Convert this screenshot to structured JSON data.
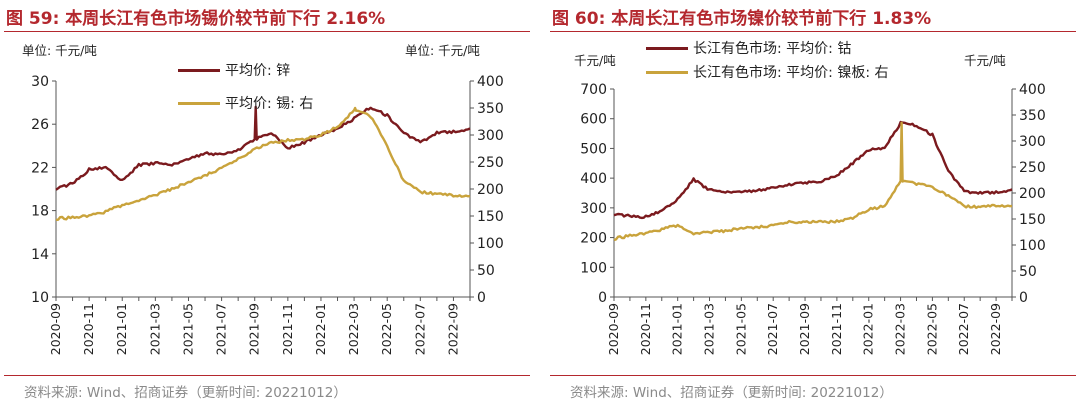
{
  "left_panel": {
    "title": "图 59:  本周长江有色市场锡价较节前下行 2.16%",
    "unit_left": "单位:  千元/吨",
    "unit_right": "单位:  千元/吨",
    "source": "资料来源:  Wind、招商证券（更新时间: 20221012）",
    "legend": [
      {
        "label": "平均价: 锌",
        "color": "#7b1a1e"
      },
      {
        "label": "平均价: 锡: 右",
        "color": "#c9a33c"
      }
    ]
  },
  "right_panel": {
    "title": "图 60:  本周长江有色市场镍价较节前下行 1.83%",
    "unit_left": "千元/吨",
    "unit_right": "千元/吨",
    "source": "资料来源:  Wind、招商证券（更新时间: 20221012）",
    "legend": [
      {
        "label": "长江有色市场: 平均价: 钴",
        "color": "#7b1a1e"
      },
      {
        "label": "长江有色市场: 平均价: 镍板:  右",
        "color": "#c9a33c"
      }
    ]
  },
  "chart_data": [
    {
      "type": "line",
      "title": "本周长江有色市场锡价较节前下行 2.16%",
      "x": [
        "2020-09",
        "2020-10",
        "2020-11",
        "2020-12",
        "2021-01",
        "2021-02",
        "2021-03",
        "2021-04",
        "2021-05",
        "2021-06",
        "2021-07",
        "2021-08",
        "2021-09",
        "2021-10",
        "2021-11",
        "2021-12",
        "2022-01",
        "2022-02",
        "2022-03",
        "2022-04",
        "2022-05",
        "2022-06",
        "2022-07",
        "2022-08",
        "2022-09",
        "2022-10"
      ],
      "x_tick_labels": [
        "2020-09",
        "2020-11",
        "2021-01",
        "2021-03",
        "2021-05",
        "2021-07",
        "2021-09",
        "2021-11",
        "2022-01",
        "2022-03",
        "2022-05",
        "2022-07",
        "2022-09"
      ],
      "series": [
        {
          "name": "平均价: 锌",
          "axis": "left",
          "color": "#7b1a1e",
          "values": [
            20.0,
            20.5,
            21.8,
            22.0,
            20.8,
            22.2,
            22.4,
            22.2,
            22.8,
            23.3,
            23.2,
            23.6,
            24.6,
            25.2,
            23.8,
            24.3,
            25.0,
            25.6,
            26.5,
            27.6,
            26.8,
            25.2,
            24.3,
            25.2,
            25.3,
            25.6
          ],
          "spikes": [
            {
              "x": "2021-09",
              "value": 27.6
            }
          ]
        },
        {
          "name": "平均价: 锡: 右",
          "axis": "right",
          "color": "#c9a33c",
          "values": [
            145,
            147,
            150,
            158,
            170,
            180,
            188,
            200,
            212,
            225,
            238,
            255,
            275,
            285,
            290,
            292,
            300,
            315,
            345,
            335,
            280,
            215,
            195,
            190,
            188,
            187
          ],
          "spikes": [
            {
              "x": "2022-03",
              "value": 350
            }
          ]
        }
      ],
      "ylim_left": [
        10,
        30
      ],
      "yticks_left": [
        10,
        14,
        18,
        22,
        26,
        30
      ],
      "ylim_right": [
        0,
        400
      ],
      "yticks_right": [
        0,
        50,
        100,
        150,
        200,
        250,
        300,
        350,
        400
      ],
      "ylabel_left": "单位:  千元/吨",
      "ylabel_right": "单位:  千元/吨",
      "xlabel": ""
    },
    {
      "type": "line",
      "title": "本周长江有色市场镍价较节前下行 1.83%",
      "x": [
        "2020-09",
        "2020-10",
        "2020-11",
        "2020-12",
        "2021-01",
        "2021-02",
        "2021-03",
        "2021-04",
        "2021-05",
        "2021-06",
        "2021-07",
        "2021-08",
        "2021-09",
        "2021-10",
        "2021-11",
        "2021-12",
        "2022-01",
        "2022-02",
        "2022-03",
        "2022-04",
        "2022-05",
        "2022-06",
        "2022-07",
        "2022-08",
        "2022-09",
        "2022-10"
      ],
      "x_tick_labels": [
        "2020-09",
        "2020-11",
        "2021-01",
        "2021-03",
        "2021-05",
        "2021-07",
        "2021-09",
        "2021-11",
        "2022-01",
        "2022-03",
        "2022-05",
        "2022-07",
        "2022-09"
      ],
      "series": [
        {
          "name": "长江有色市场: 平均价: 钴",
          "axis": "left",
          "color": "#7b1a1e",
          "values": [
            278,
            272,
            270,
            290,
            330,
            395,
            360,
            352,
            355,
            358,
            368,
            378,
            385,
            388,
            410,
            450,
            495,
            502,
            585,
            578,
            545,
            425,
            355,
            350,
            352,
            362
          ],
          "spikes": []
        },
        {
          "name": "长江有色市场: 平均价: 镍板:  右",
          "axis": "right",
          "color": "#c9a33c",
          "values": [
            112,
            118,
            122,
            130,
            138,
            123,
            124,
            127,
            132,
            134,
            137,
            144,
            145,
            144,
            145,
            152,
            168,
            175,
            222,
            218,
            212,
            195,
            175,
            172,
            176,
            175
          ],
          "spikes": [
            {
              "x": "2022-03",
              "value": 335
            }
          ]
        }
      ],
      "ylim_left": [
        0,
        700
      ],
      "yticks_left": [
        0,
        100,
        200,
        300,
        400,
        500,
        600,
        700
      ],
      "ylim_right": [
        0,
        400
      ],
      "yticks_right": [
        0,
        50,
        100,
        150,
        200,
        250,
        300,
        350,
        400
      ],
      "ylabel_left": "千元/吨",
      "ylabel_right": "千元/吨",
      "xlabel": ""
    }
  ]
}
